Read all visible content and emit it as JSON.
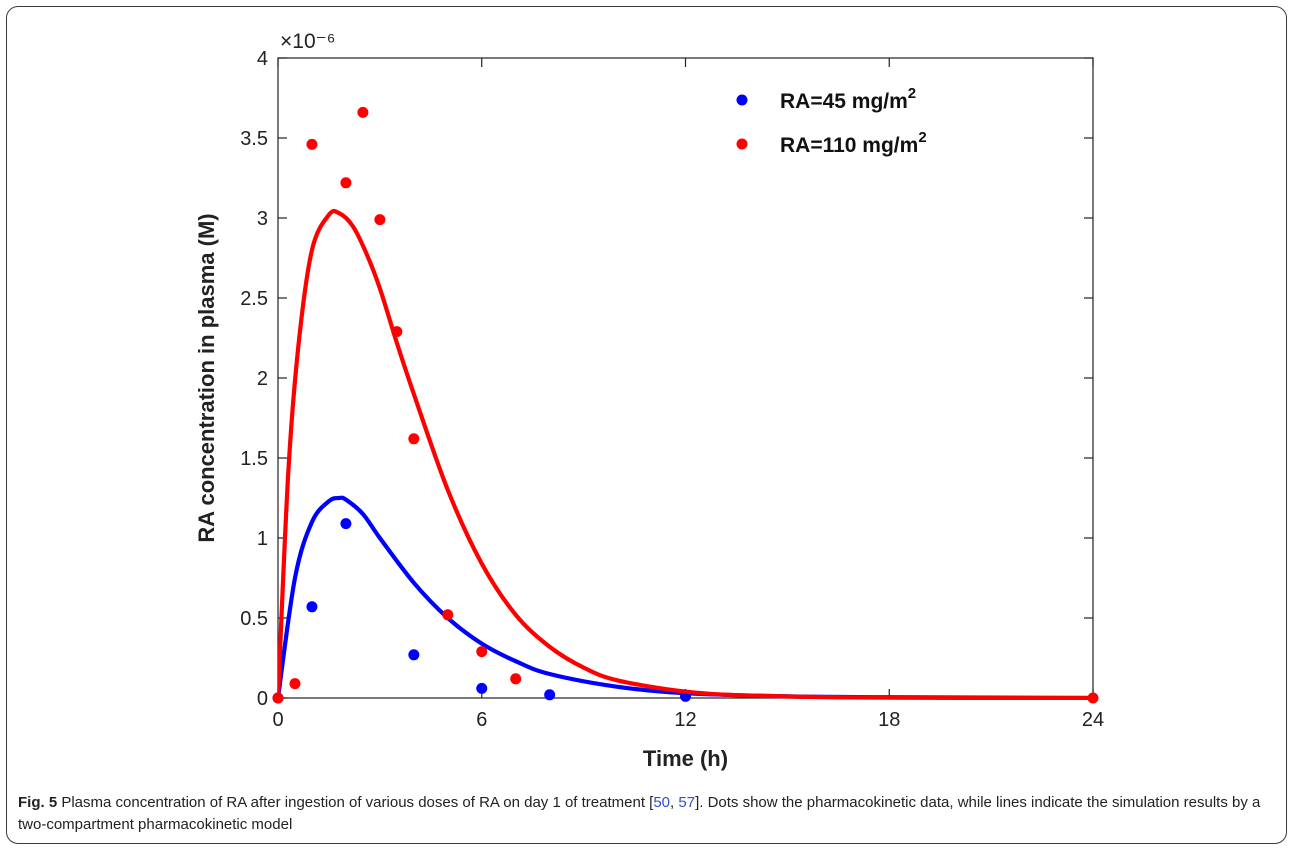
{
  "chart_data": {
    "type": "line",
    "title": "",
    "xlabel": "Time (h)",
    "ylabel": "RA concentration in plasma (M)",
    "xlim": [
      0,
      24
    ],
    "ylim": [
      0,
      4
    ],
    "x_ticks": [
      0,
      6,
      12,
      18,
      24
    ],
    "y_ticks": [
      0,
      0.5,
      1,
      1.5,
      2,
      2.5,
      3,
      3.5,
      4
    ],
    "y_exponent_label": "×10⁻⁶",
    "grid": false,
    "legend_position": "top-right",
    "series": [
      {
        "name": "RA=45 mg/m",
        "name_sup": "2",
        "color": "#0000ff",
        "points": [
          [
            0,
            0
          ],
          [
            1,
            0.57
          ],
          [
            2,
            1.09
          ],
          [
            4,
            0.27
          ],
          [
            6,
            0.06
          ],
          [
            8,
            0.02
          ],
          [
            12,
            0.01
          ]
        ],
        "curve": {
          "x": [
            0,
            0.5,
            1,
            1.5,
            1.8,
            2,
            2.5,
            3,
            4,
            5,
            6,
            7,
            8,
            10,
            12,
            15,
            18,
            24
          ],
          "y": [
            0,
            0.75,
            1.1,
            1.23,
            1.25,
            1.24,
            1.15,
            1.0,
            0.72,
            0.5,
            0.34,
            0.23,
            0.15,
            0.07,
            0.03,
            0.01,
            0.005,
            0
          ]
        }
      },
      {
        "name": "RA=110 mg/m",
        "name_sup": "2",
        "color": "#ff0000",
        "points": [
          [
            0,
            0
          ],
          [
            0.5,
            0.09
          ],
          [
            1,
            3.46
          ],
          [
            2,
            3.22
          ],
          [
            2.5,
            3.66
          ],
          [
            3,
            2.99
          ],
          [
            3.5,
            2.29
          ],
          [
            4,
            1.62
          ],
          [
            5,
            0.52
          ],
          [
            6,
            0.29
          ],
          [
            7,
            0.12
          ],
          [
            24,
            0
          ]
        ],
        "curve": {
          "x": [
            0,
            0.3,
            0.6,
            1,
            1.5,
            1.8,
            2.2,
            2.6,
            3,
            3.5,
            4,
            5,
            6,
            7,
            8,
            9,
            10,
            12,
            14,
            18,
            24
          ],
          "y": [
            0,
            1.4,
            2.2,
            2.8,
            3.02,
            3.03,
            2.95,
            2.78,
            2.56,
            2.22,
            1.9,
            1.3,
            0.84,
            0.52,
            0.32,
            0.19,
            0.11,
            0.04,
            0.015,
            0.002,
            0
          ]
        }
      }
    ]
  },
  "caption": {
    "fig_label": "Fig. 5",
    "text_before_refs": " Plasma concentration of RA after ingestion of various doses of RA on day 1 of treatment [",
    "ref1": "50",
    "ref_sep": ", ",
    "ref2": "57",
    "text_after_refs": "]. Dots show the pharmacokinetic data, while lines indicate the simulation results by a two-compartment pharmacokinetic model"
  }
}
